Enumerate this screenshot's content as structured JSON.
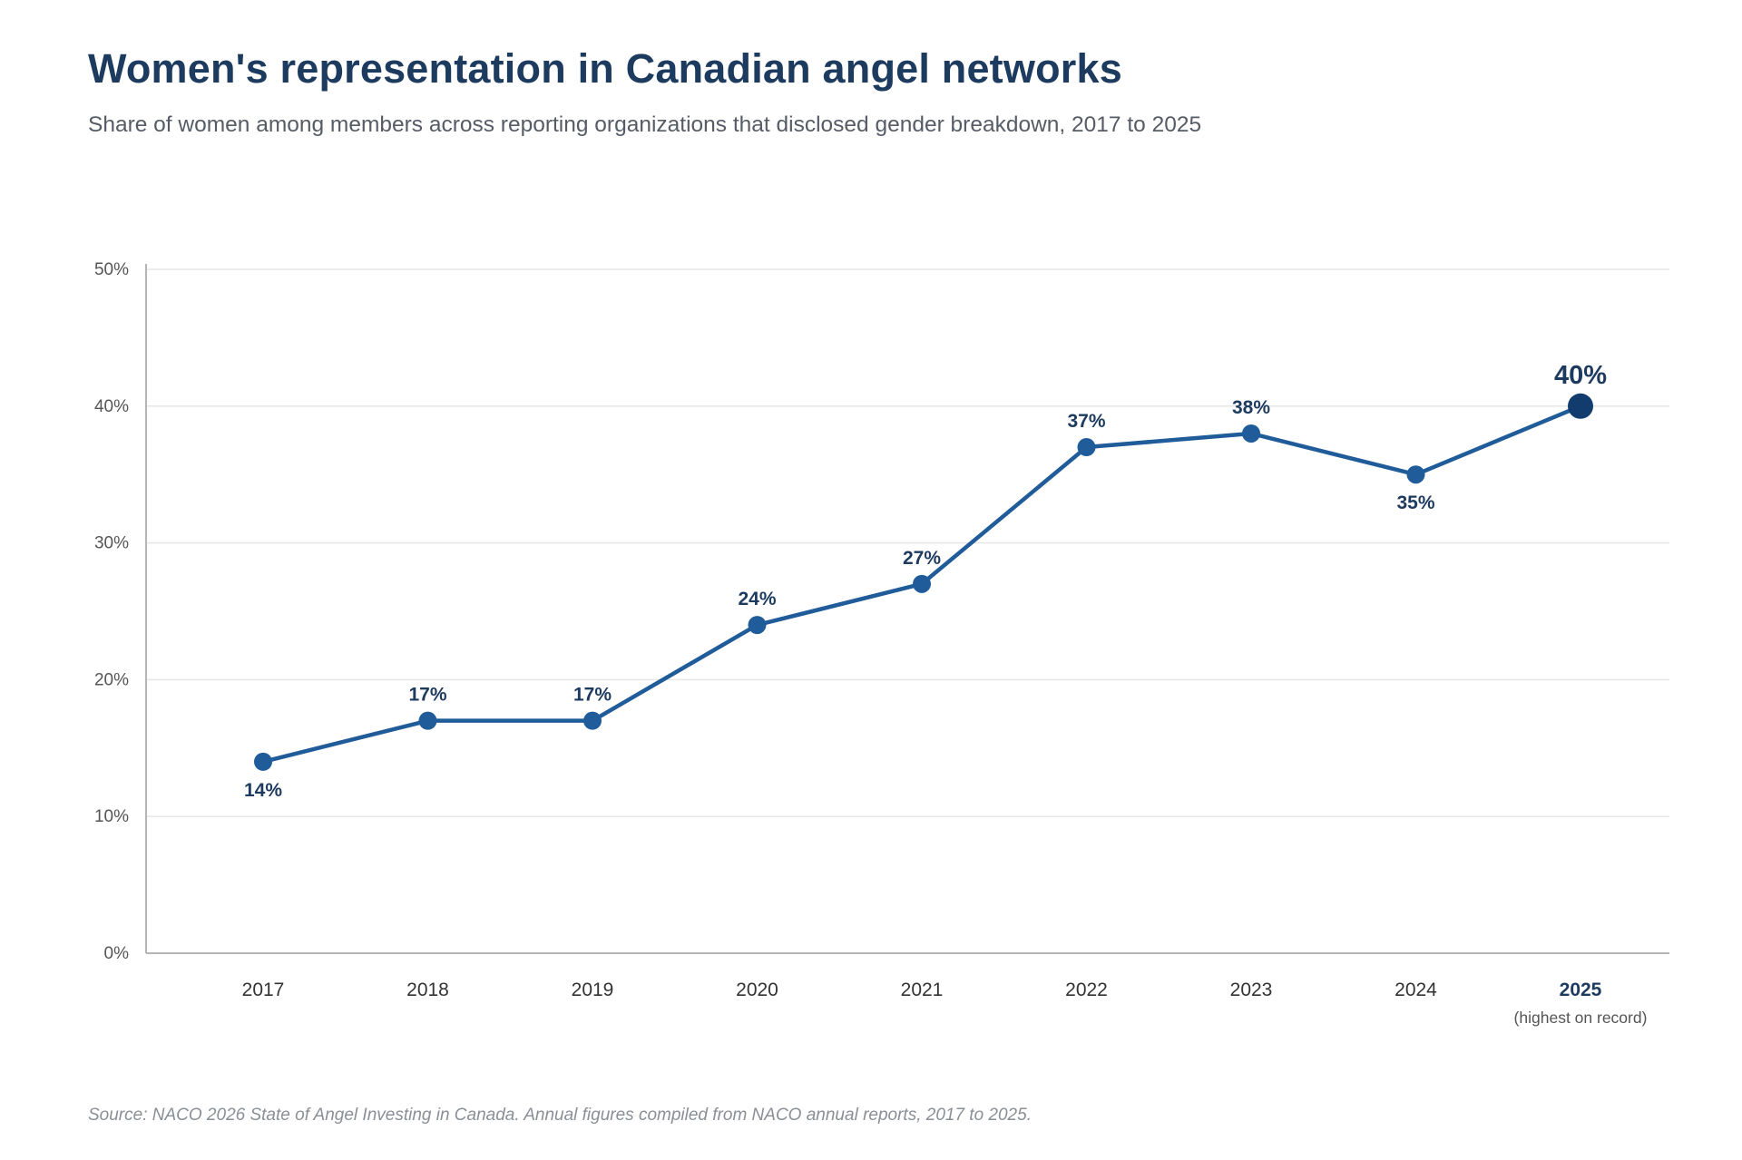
{
  "chart_data": {
    "type": "line",
    "title": "Women's representation in Canadian angel networks",
    "subtitle": "Share of women among members across reporting organizations that disclosed gender breakdown, 2017 to 2025",
    "categories": [
      "2017",
      "2018",
      "2019",
      "2020",
      "2021",
      "2022",
      "2023",
      "2024",
      "2025"
    ],
    "series": [
      {
        "values": [
          14,
          17,
          17,
          24,
          27,
          37,
          38,
          35,
          40
        ],
        "data_labels": [
          "14%",
          "17%",
          "17%",
          "24%",
          "27%",
          "37%",
          "38%",
          "35%",
          "40%"
        ],
        "label_positions": [
          "below",
          "above",
          "above",
          "above",
          "above",
          "above",
          "above",
          "below",
          "above"
        ]
      }
    ],
    "y_ticks": [
      {
        "value": 0,
        "label": "0%"
      },
      {
        "value": 10,
        "label": "10%"
      },
      {
        "value": 20,
        "label": "20%"
      },
      {
        "value": 30,
        "label": "30%"
      },
      {
        "value": 40,
        "label": "40%"
      },
      {
        "value": 50,
        "label": "50%"
      }
    ],
    "ylim": [
      0,
      50
    ],
    "grid": true,
    "highlight": {
      "category": "2025",
      "note": "(highest on record)"
    },
    "source": "Source: NACO 2026 State of Angel Investing in Canada. Annual figures compiled from NACO annual reports, 2017 to 2025.",
    "colors": {
      "line": "#1f5c99",
      "marker": "#1f5c99",
      "highlight_marker": "#123c6e",
      "data_label": "#1d3a5f",
      "grid": "#e6e6e6",
      "axis": "#b5b5b5",
      "tick_label": "#555555",
      "category_label": "#333333"
    }
  }
}
